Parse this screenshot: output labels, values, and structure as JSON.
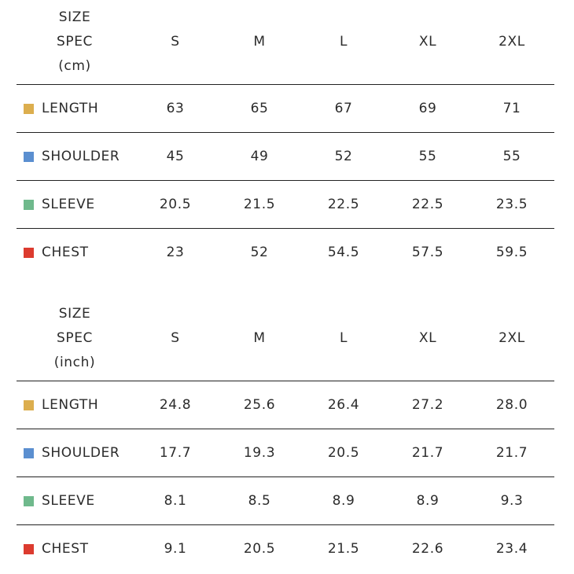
{
  "tables": [
    {
      "header": [
        "SIZE",
        "SPEC",
        "(cm)"
      ],
      "sizes": [
        "S",
        "M",
        "L",
        "XL",
        "2XL"
      ],
      "rows": [
        {
          "label": "LENGTH",
          "color": "#dcae4e",
          "values": [
            "63",
            "65",
            "67",
            "69",
            "71"
          ]
        },
        {
          "label": "SHOULDER",
          "color": "#5b8fd0",
          "values": [
            "45",
            "49",
            "52",
            "55",
            "55"
          ]
        },
        {
          "label": "SLEEVE",
          "color": "#6fb98c",
          "values": [
            "20.5",
            "21.5",
            "22.5",
            "22.5",
            "23.5"
          ]
        },
        {
          "label": "CHEST",
          "color": "#dc3b2f",
          "values": [
            "23",
            "52",
            "54.5",
            "57.5",
            "59.5"
          ]
        }
      ]
    },
    {
      "header": [
        "SIZE",
        "SPEC",
        "(inch)"
      ],
      "sizes": [
        "S",
        "M",
        "L",
        "XL",
        "2XL"
      ],
      "rows": [
        {
          "label": "LENGTH",
          "color": "#dcae4e",
          "values": [
            "24.8",
            "25.6",
            "26.4",
            "27.2",
            "28.0"
          ]
        },
        {
          "label": "SHOULDER",
          "color": "#5b8fd0",
          "values": [
            "17.7",
            "19.3",
            "20.5",
            "21.7",
            "21.7"
          ]
        },
        {
          "label": "SLEEVE",
          "color": "#6fb98c",
          "values": [
            "8.1",
            "8.5",
            "8.9",
            "8.9",
            "9.3"
          ]
        },
        {
          "label": "CHEST",
          "color": "#dc3b2f",
          "values": [
            "9.1",
            "20.5",
            "21.5",
            "22.6",
            "23.4"
          ]
        }
      ]
    }
  ]
}
